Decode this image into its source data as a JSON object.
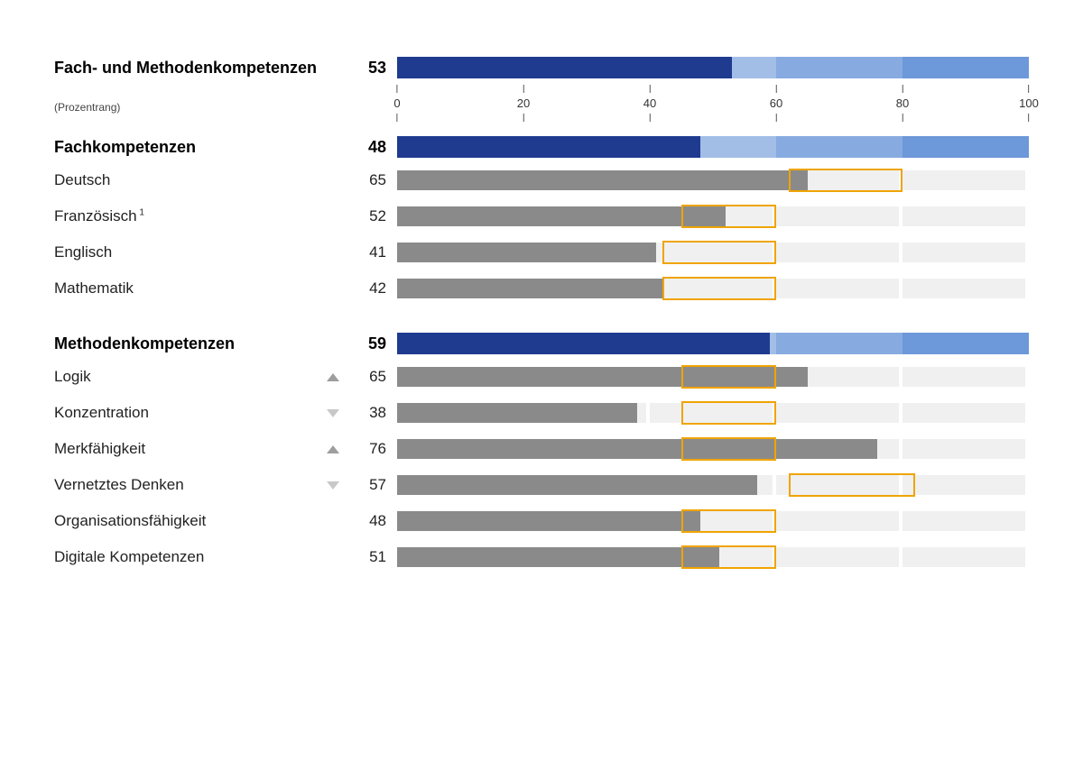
{
  "chart": {
    "type": "bar",
    "xlim": [
      0,
      100
    ],
    "ticks": [
      0,
      20,
      40,
      60,
      80,
      100
    ],
    "axis_label": "(Prozentrang)",
    "colors": {
      "summary_bar": "#1f3b8f",
      "summary_bg": [
        "#d7e3f5",
        "#bcd1ee",
        "#a2bee7",
        "#87abe0",
        "#6d98d9"
      ],
      "detail_bar": "#8a8a8a",
      "detail_bg": "#f0f0f0",
      "range_border": "#f0a400",
      "trend_up": "#9e9e9e",
      "trend_down": "#c8c8c8",
      "text": "#000000",
      "background": "#ffffff"
    },
    "fonts": {
      "label_pt": 17,
      "label_bold_pt": 18,
      "value_pt": 17,
      "axis_pt": 13,
      "sub_pt": 12
    },
    "sections": [
      {
        "kind": "summary",
        "label": "Fach- und Methodenkompetenzen",
        "value": 53
      },
      {
        "kind": "axis"
      },
      {
        "kind": "summary",
        "label": "Fachkompetenzen",
        "value": 48
      },
      {
        "kind": "detail",
        "label": "Deutsch",
        "value": 65,
        "range": [
          62,
          80
        ]
      },
      {
        "kind": "detail",
        "label": "Französisch",
        "sup": "1",
        "value": 52,
        "range": [
          45,
          60
        ]
      },
      {
        "kind": "detail",
        "label": "Englisch",
        "value": 41,
        "range": [
          42,
          60
        ]
      },
      {
        "kind": "detail",
        "label": "Mathematik",
        "value": 42,
        "range": [
          42,
          60
        ]
      },
      {
        "kind": "gap"
      },
      {
        "kind": "summary",
        "label": "Methodenkompetenzen",
        "value": 59
      },
      {
        "kind": "detail",
        "label": "Logik",
        "trend": "up",
        "value": 65,
        "range": [
          45,
          60
        ]
      },
      {
        "kind": "detail",
        "label": "Konzentration",
        "trend": "down",
        "value": 38,
        "range": [
          45,
          60
        ]
      },
      {
        "kind": "detail",
        "label": "Merkfähigkeit",
        "trend": "up",
        "value": 76,
        "range": [
          45,
          60
        ]
      },
      {
        "kind": "detail",
        "label": "Vernetztes Denken",
        "trend": "down",
        "value": 57,
        "range": [
          62,
          82
        ]
      },
      {
        "kind": "detail",
        "label": "Organisationsfähigkeit",
        "value": 48,
        "range": [
          45,
          60
        ]
      },
      {
        "kind": "detail",
        "label": "Digitale Kompetenzen",
        "value": 51,
        "range": [
          45,
          60
        ]
      }
    ]
  }
}
